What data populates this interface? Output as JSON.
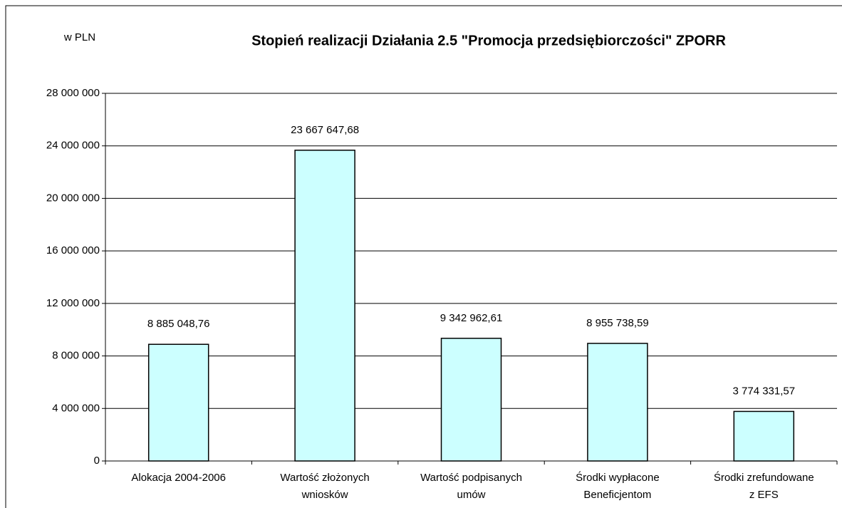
{
  "chart_data": {
    "type": "bar",
    "title": "Stopień realizacji Działania 2.5 \"Promocja przedsiębiorczości\" ZPORR",
    "y_label": "w PLN",
    "categories": [
      "Alokacja 2004-2006",
      "Wartość złożonych\nwniosków",
      "Wartość podpisanych\numów",
      "Środki wypłacone\nBeneficjentom",
      "Środki zrefundowane\nz EFS"
    ],
    "values": [
      8885048.76,
      23667647.68,
      9342962.61,
      8955738.59,
      3774331.57
    ],
    "value_labels": [
      "8 885 048,76",
      "23 667 647,68",
      "9 342 962,61",
      "8 955 738,59",
      "3 774 331,57"
    ],
    "color": "#ccffff",
    "ylim": [
      0,
      28000000
    ],
    "yticks": [
      0,
      {
        "value": 4000000,
        "label": "4 000 000"
      },
      {
        "value": 8000000,
        "label": "8 000 000"
      },
      {
        "value": 12000000,
        "label": "12 000 000"
      },
      {
        "value": 16000000,
        "label": "16 000 000"
      },
      {
        "value": 20000000,
        "label": "20 000 000"
      },
      {
        "value": 24000000,
        "label": "24 000 000"
      },
      {
        "value": 28000000,
        "label": "28 000 000"
      }
    ],
    "grid": true
  }
}
